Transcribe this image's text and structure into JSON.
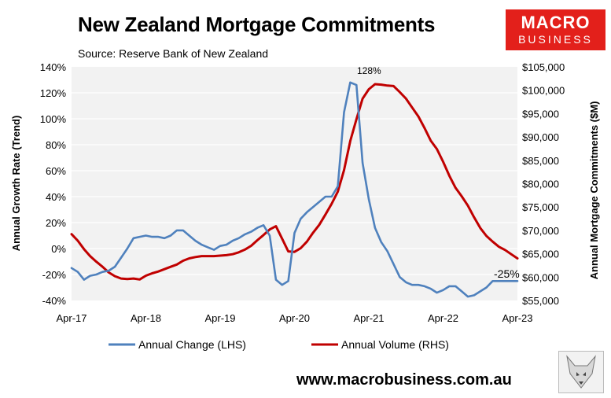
{
  "header": {
    "title": "New Zealand Mortgage Commitments",
    "source": "Source: Reserve Bank of New Zealand"
  },
  "logo": {
    "line1": "MACRO",
    "line2": "BUSINESS",
    "color": "#e3201b",
    "mascot_icon": "fox-icon"
  },
  "footer": {
    "url": "www.macrobusiness.com.au"
  },
  "chart_data": {
    "type": "line",
    "title": "New Zealand Mortgage Commitments",
    "ylabel_left": "Annual Growth Rate (Trend)",
    "ylabel_right": "Annual Mortgage Commitments ($M)",
    "x_ticks": [
      "Apr-17",
      "Apr-18",
      "Apr-19",
      "Apr-20",
      "Apr-21",
      "Apr-22",
      "Apr-23"
    ],
    "y_left_ticks": [
      "-40%",
      "-20%",
      "0%",
      "20%",
      "40%",
      "60%",
      "80%",
      "100%",
      "120%",
      "140%"
    ],
    "y_right_ticks": [
      "$55,000",
      "$60,000",
      "$65,000",
      "$70,000",
      "$75,000",
      "$80,000",
      "$85,000",
      "$90,000",
      "$95,000",
      "$100,000",
      "$105,000"
    ],
    "ylim_left": [
      -40,
      140
    ],
    "ylim_right": [
      55000,
      105000
    ],
    "grid": "horizontal",
    "plot_background": "#f2f2f2",
    "legend_position": "bottom",
    "annotations": {
      "peak": "128%",
      "last": "-25%"
    },
    "series": [
      {
        "name": "Annual Change (LHS)",
        "axis": "left",
        "color": "#4f81bd",
        "x": [
          0,
          1,
          2,
          3,
          4,
          5,
          6,
          7,
          8,
          9,
          10,
          11,
          12,
          13,
          14,
          15,
          16,
          17,
          18,
          19,
          20,
          21,
          22,
          23,
          24,
          25,
          26,
          27,
          28,
          29,
          30,
          31,
          32,
          33,
          34,
          35,
          36,
          37,
          38,
          39,
          40,
          41,
          42,
          43,
          44,
          45,
          46,
          47,
          48,
          49,
          50,
          51,
          52,
          53,
          54,
          55,
          56,
          57,
          58,
          59,
          60,
          61,
          62,
          63,
          64,
          65,
          66,
          67,
          68,
          69,
          70,
          71,
          72
        ],
        "values": [
          -15,
          -18,
          -24,
          -21,
          -20,
          -18,
          -17,
          -14,
          -7,
          0,
          8,
          9,
          10,
          9,
          9,
          8,
          10,
          14,
          14,
          10,
          6,
          3,
          1,
          -1,
          2,
          3,
          6,
          8,
          11,
          13,
          16,
          18,
          10,
          -24,
          -28,
          -25,
          12,
          23,
          28,
          32,
          36,
          40,
          40,
          48,
          105,
          128,
          126,
          66,
          38,
          16,
          5,
          -2,
          -12,
          -22,
          -26,
          -28,
          -28,
          -29,
          -31,
          -34,
          -32,
          -29,
          -29,
          -33,
          -37,
          -36,
          -33,
          -30,
          -25,
          -25,
          -25,
          -25,
          -25
        ]
      },
      {
        "name": "Annual Volume (RHS)",
        "axis": "right",
        "color": "#c00000",
        "x": [
          0,
          1,
          2,
          3,
          4,
          5,
          6,
          7,
          8,
          9,
          10,
          11,
          12,
          13,
          14,
          15,
          16,
          17,
          18,
          19,
          20,
          21,
          22,
          23,
          24,
          25,
          26,
          27,
          28,
          29,
          30,
          31,
          32,
          33,
          34,
          35,
          36,
          37,
          38,
          39,
          40,
          41,
          42,
          43,
          44,
          45,
          46,
          47,
          48,
          49,
          50,
          51,
          52,
          53,
          54,
          55,
          56,
          57,
          58,
          59,
          60,
          61,
          62,
          63,
          64,
          65,
          66,
          67,
          68,
          69,
          70,
          71,
          72
        ],
        "values": [
          69200,
          67800,
          66000,
          64500,
          63300,
          62200,
          61000,
          60200,
          59700,
          59600,
          59700,
          59500,
          60300,
          60800,
          61200,
          61700,
          62200,
          62700,
          63500,
          64000,
          64300,
          64500,
          64500,
          64500,
          64600,
          64700,
          64900,
          65300,
          65900,
          66700,
          67900,
          69000,
          70200,
          70900,
          68200,
          65500,
          65400,
          66200,
          67600,
          69500,
          71200,
          73400,
          75700,
          78300,
          82900,
          89100,
          93800,
          98200,
          100200,
          101300,
          101200,
          101000,
          100900,
          99600,
          98200,
          96300,
          94400,
          91900,
          89200,
          87400,
          84700,
          81700,
          79100,
          77300,
          75300,
          72800,
          70500,
          68800,
          67600,
          66500,
          65800,
          64900,
          64000
        ]
      }
    ]
  }
}
